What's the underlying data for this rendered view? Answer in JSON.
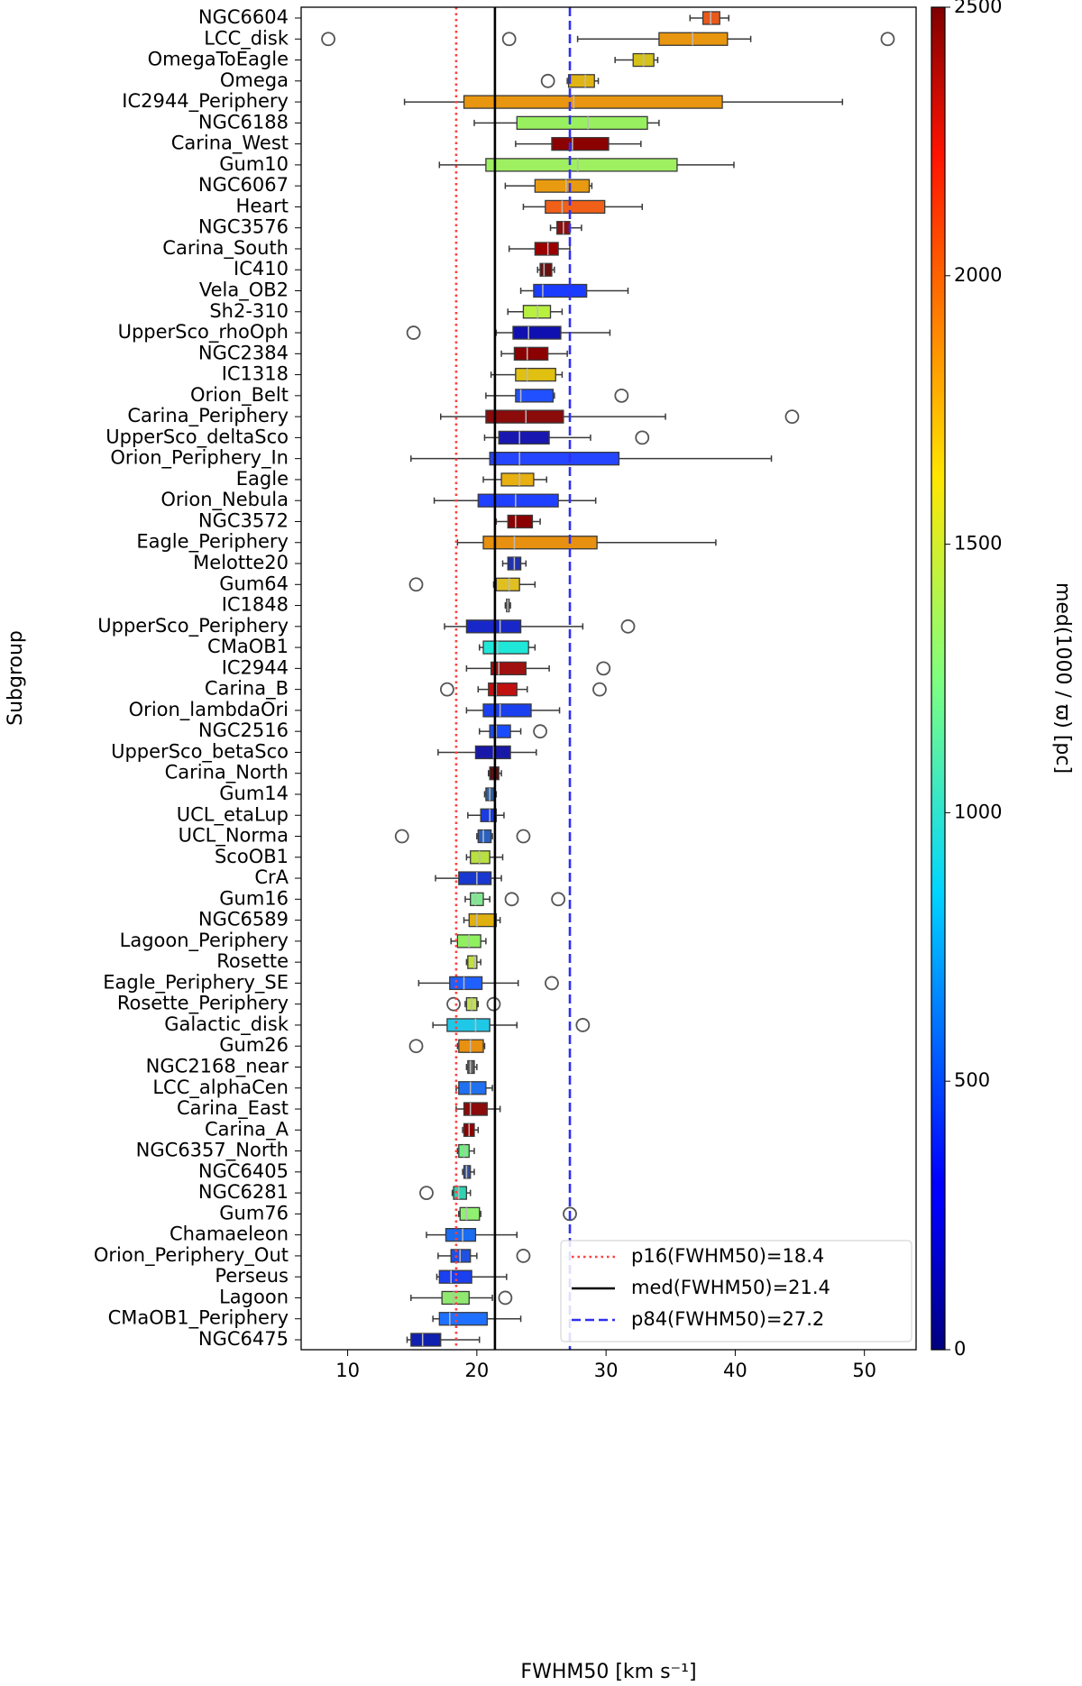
{
  "chart_data": {
    "type": "boxplot",
    "orientation": "horizontal",
    "xlabel": "FWHM50 [km s⁻¹]",
    "ylabel": "Subgroup",
    "xlim": [
      6.4,
      54.0
    ],
    "xticks": [
      10,
      20,
      30,
      40,
      50
    ],
    "boxes": [
      {
        "name": "NGC6604",
        "color": "#e85a1c",
        "whislo": 36.5,
        "q1": 37.5,
        "med": 38.1,
        "q3": 38.8,
        "whishi": 39.5
      },
      {
        "name": "LCC_disk",
        "color": "#e8950f",
        "whislo": 27.8,
        "q1": 34.1,
        "med": 36.7,
        "q3": 39.4,
        "whishi": 41.2,
        "fliers": [
          8.5,
          22.5,
          51.8
        ]
      },
      {
        "name": "OmegaToEagle",
        "color": "#d4c21a",
        "whislo": 30.7,
        "q1": 32.1,
        "med": 32.9,
        "q3": 33.7,
        "whishi": 34.0
      },
      {
        "name": "Omega",
        "color": "#e0b414",
        "whislo": 27.0,
        "q1": 27.1,
        "med": 28.4,
        "q3": 29.1,
        "whishi": 29.4,
        "fliers": [
          25.5
        ]
      },
      {
        "name": "IC2944_Periphery",
        "color": "#e8950f",
        "whislo": 14.4,
        "q1": 19.0,
        "med": 27.5,
        "q3": 39.0,
        "whishi": 48.3
      },
      {
        "name": "NGC6188",
        "color": "#98f060",
        "whislo": 19.8,
        "q1": 23.1,
        "med": 28.6,
        "q3": 33.2,
        "whishi": 34.1
      },
      {
        "name": "Carina_West",
        "color": "#8b0000",
        "whislo": 23.0,
        "q1": 25.8,
        "med": 27.4,
        "q3": 30.2,
        "whishi": 32.7
      },
      {
        "name": "Gum10",
        "color": "#9ef060",
        "whislo": 17.1,
        "q1": 20.7,
        "med": 27.8,
        "q3": 35.5,
        "whishi": 39.9
      },
      {
        "name": "NGC6067",
        "color": "#e89a10",
        "whislo": 22.2,
        "q1": 24.5,
        "med": 26.9,
        "q3": 28.7,
        "whishi": 28.9
      },
      {
        "name": "Heart",
        "color": "#f06018",
        "whislo": 23.6,
        "q1": 25.3,
        "med": 26.6,
        "q3": 29.9,
        "whishi": 32.8
      },
      {
        "name": "NGC3576",
        "color": "#8b1010",
        "whislo": 25.7,
        "q1": 26.2,
        "med": 26.7,
        "q3": 27.2,
        "whishi": 28.1
      },
      {
        "name": "Carina_South",
        "color": "#9a0000",
        "whislo": 22.5,
        "q1": 24.5,
        "med": 25.5,
        "q3": 26.3,
        "whishi": 27.2
      },
      {
        "name": "IC410",
        "color": "#6b1010",
        "whislo": 24.7,
        "q1": 24.9,
        "med": 25.2,
        "q3": 25.8,
        "whishi": 26.0
      },
      {
        "name": "Vela_OB2",
        "color": "#1a3cff",
        "whislo": 23.4,
        "q1": 24.4,
        "med": 25.1,
        "q3": 28.5,
        "whishi": 31.7
      },
      {
        "name": "Sh2-310",
        "color": "#b8f040",
        "whislo": 22.4,
        "q1": 23.6,
        "med": 24.7,
        "q3": 25.7,
        "whishi": 26.6
      },
      {
        "name": "UpperSco_rhoOph",
        "color": "#1010b0",
        "whislo": 21.5,
        "q1": 22.8,
        "med": 24.0,
        "q3": 26.5,
        "whishi": 30.3,
        "fliers": [
          15.1
        ]
      },
      {
        "name": "NGC2384",
        "color": "#8b0000",
        "whislo": 21.9,
        "q1": 22.9,
        "med": 23.9,
        "q3": 25.5,
        "whishi": 27.0
      },
      {
        "name": "IC1318",
        "color": "#e0c010",
        "whislo": 21.1,
        "q1": 23.0,
        "med": 23.9,
        "q3": 26.1,
        "whishi": 26.6
      },
      {
        "name": "Orion_Belt",
        "color": "#2050ff",
        "whislo": 20.7,
        "q1": 23.0,
        "med": 23.4,
        "q3": 25.9,
        "whishi": 26.0,
        "fliers": [
          31.2
        ]
      },
      {
        "name": "Carina_Periphery",
        "color": "#8b0a0a",
        "whislo": 17.2,
        "q1": 20.7,
        "med": 23.8,
        "q3": 26.7,
        "whishi": 34.6,
        "fliers": [
          44.4
        ]
      },
      {
        "name": "UpperSco_deltaSco",
        "color": "#1818b0",
        "whislo": 20.6,
        "q1": 21.7,
        "med": 23.3,
        "q3": 25.6,
        "whishi": 28.8,
        "fliers": [
          32.8
        ]
      },
      {
        "name": "Orion_Periphery_In",
        "color": "#2545ff",
        "whislo": 14.9,
        "q1": 21.0,
        "med": 23.3,
        "q3": 31.0,
        "whishi": 42.8
      },
      {
        "name": "Eagle",
        "color": "#e8b010",
        "whislo": 20.5,
        "q1": 21.9,
        "med": 23.3,
        "q3": 24.4,
        "whishi": 25.4
      },
      {
        "name": "Orion_Nebula",
        "color": "#2040ff",
        "whislo": 16.7,
        "q1": 20.1,
        "med": 23.0,
        "q3": 26.3,
        "whishi": 29.2
      },
      {
        "name": "NGC3572",
        "color": "#8b0000",
        "whislo": 21.5,
        "q1": 22.4,
        "med": 23.0,
        "q3": 24.3,
        "whishi": 24.9
      },
      {
        "name": "Eagle_Periphery",
        "color": "#e8900f",
        "whislo": 18.5,
        "q1": 20.5,
        "med": 22.9,
        "q3": 29.3,
        "whishi": 38.5
      },
      {
        "name": "Melotte20",
        "color": "#2030b0",
        "whislo": 22.0,
        "q1": 22.4,
        "med": 22.9,
        "q3": 23.4,
        "whishi": 23.8
      },
      {
        "name": "Gum64",
        "color": "#e0c020",
        "whislo": 21.3,
        "q1": 21.5,
        "med": 22.5,
        "q3": 23.3,
        "whishi": 24.5,
        "fliers": [
          15.3
        ]
      },
      {
        "name": "IC1848",
        "color": "#3a3a60",
        "whislo": 22.2,
        "q1": 22.3,
        "med": 22.4,
        "q3": 22.5,
        "whishi": 22.6
      },
      {
        "name": "UpperSco_Periphery",
        "color": "#1828c8",
        "whislo": 17.5,
        "q1": 19.2,
        "med": 21.8,
        "q3": 23.4,
        "whishi": 28.2,
        "fliers": [
          31.7
        ]
      },
      {
        "name": "CMaOB1",
        "color": "#20e8d8",
        "whislo": 20.2,
        "q1": 20.5,
        "med": 21.6,
        "q3": 24.0,
        "whishi": 24.5
      },
      {
        "name": "IC2944",
        "color": "#a01010",
        "whislo": 19.2,
        "q1": 21.1,
        "med": 21.7,
        "q3": 23.8,
        "whishi": 25.6,
        "fliers": [
          29.8
        ]
      },
      {
        "name": "Carina_B",
        "color": "#c01010",
        "whislo": 20.1,
        "q1": 20.9,
        "med": 21.5,
        "q3": 23.1,
        "whishi": 23.9,
        "fliers": [
          17.7,
          29.5
        ]
      },
      {
        "name": "Orion_lambdaOri",
        "color": "#1a40f0",
        "whislo": 19.2,
        "q1": 20.5,
        "med": 21.8,
        "q3": 24.2,
        "whishi": 26.4
      },
      {
        "name": "NGC2516",
        "color": "#1a4cff",
        "whislo": 20.2,
        "q1": 21.0,
        "med": 21.5,
        "q3": 22.6,
        "whishi": 23.4,
        "fliers": [
          24.9
        ]
      },
      {
        "name": "UpperSco_betaSco",
        "color": "#1818a8",
        "whislo": 17.0,
        "q1": 19.9,
        "med": 21.3,
        "q3": 22.6,
        "whishi": 24.6
      },
      {
        "name": "Carina_North",
        "color": "#5a1010",
        "whislo": 20.9,
        "q1": 21.0,
        "med": 21.4,
        "q3": 21.7,
        "whishi": 21.9
      },
      {
        "name": "Gum14",
        "color": "#3060a0",
        "whislo": 20.6,
        "q1": 20.7,
        "med": 21.0,
        "q3": 21.4,
        "whishi": 21.5
      },
      {
        "name": "UCL_etaLup",
        "color": "#1a3ce0",
        "whislo": 19.3,
        "q1": 20.3,
        "med": 21.0,
        "q3": 21.5,
        "whishi": 22.1
      },
      {
        "name": "UCL_Norma",
        "color": "#2a60c0",
        "whislo": 20.0,
        "q1": 20.1,
        "med": 20.5,
        "q3": 21.1,
        "whishi": 21.2,
        "fliers": [
          14.2,
          23.6
        ]
      },
      {
        "name": "ScoOB1",
        "color": "#b8e040",
        "whislo": 19.2,
        "q1": 19.5,
        "med": 20.2,
        "q3": 21.0,
        "whishi": 22.0
      },
      {
        "name": "CrA",
        "color": "#1838d0",
        "whislo": 16.8,
        "q1": 18.6,
        "med": 20.0,
        "q3": 21.1,
        "whishi": 21.9
      },
      {
        "name": "Gum16",
        "color": "#80e890",
        "whislo": 19.1,
        "q1": 19.5,
        "med": 19.9,
        "q3": 20.5,
        "whishi": 21.0,
        "fliers": [
          22.7,
          26.3
        ]
      },
      {
        "name": "NGC6589",
        "color": "#e0b010",
        "whislo": 19.0,
        "q1": 19.4,
        "med": 20.0,
        "q3": 21.5,
        "whishi": 21.8
      },
      {
        "name": "Lagoon_Periphery",
        "color": "#90f060",
        "whislo": 18.0,
        "q1": 18.5,
        "med": 19.4,
        "q3": 20.3,
        "whishi": 20.7
      },
      {
        "name": "Rosette",
        "color": "#c0e040",
        "whislo": 19.2,
        "q1": 19.3,
        "med": 19.8,
        "q3": 20.0,
        "whishi": 20.3
      },
      {
        "name": "Eagle_Periphery_SE",
        "color": "#2060ff",
        "whislo": 15.5,
        "q1": 17.9,
        "med": 19.0,
        "q3": 20.4,
        "whishi": 23.2,
        "fliers": [
          25.8
        ]
      },
      {
        "name": "Rosette_Periphery",
        "color": "#c0e050",
        "whislo": 19.1,
        "q1": 19.2,
        "med": 19.6,
        "q3": 20.0,
        "whishi": 20.1,
        "fliers": [
          18.2,
          21.3
        ]
      },
      {
        "name": "Galactic_disk",
        "color": "#20c8e8",
        "whislo": 16.6,
        "q1": 17.7,
        "med": 19.9,
        "q3": 21.0,
        "whishi": 23.1,
        "fliers": [
          28.2
        ]
      },
      {
        "name": "Gum26",
        "color": "#e8900f",
        "whislo": 18.5,
        "q1": 18.6,
        "med": 19.5,
        "q3": 20.5,
        "whishi": 20.6,
        "fliers": [
          15.3
        ]
      },
      {
        "name": "NGC2168_near",
        "color": "#606060",
        "whislo": 19.2,
        "q1": 19.3,
        "med": 19.5,
        "q3": 19.8,
        "whishi": 20.0
      },
      {
        "name": "LCC_alphaCen",
        "color": "#2070f0",
        "whislo": 18.4,
        "q1": 18.6,
        "med": 19.5,
        "q3": 20.7,
        "whishi": 21.2
      },
      {
        "name": "Carina_East",
        "color": "#8b0a0a",
        "whislo": 18.4,
        "q1": 19.0,
        "med": 19.5,
        "q3": 20.8,
        "whishi": 21.8
      },
      {
        "name": "Carina_A",
        "color": "#900000",
        "whislo": 18.9,
        "q1": 19.0,
        "med": 19.4,
        "q3": 19.8,
        "whishi": 20.1
      },
      {
        "name": "NGC6357_North",
        "color": "#70f080",
        "whislo": 18.5,
        "q1": 18.6,
        "med": 19.0,
        "q3": 19.4,
        "whishi": 19.8
      },
      {
        "name": "NGC6405",
        "color": "#3050a0",
        "whislo": 18.9,
        "q1": 19.0,
        "med": 19.2,
        "q3": 19.5,
        "whishi": 19.8
      },
      {
        "name": "NGC6281",
        "color": "#30d0b0",
        "whislo": 18.1,
        "q1": 18.2,
        "med": 18.6,
        "q3": 19.2,
        "whishi": 19.5,
        "fliers": [
          16.1
        ]
      },
      {
        "name": "Gum76",
        "color": "#90f070",
        "whislo": 18.6,
        "q1": 18.7,
        "med": 19.2,
        "q3": 20.2,
        "whishi": 20.3,
        "fliers": [
          27.2
        ]
      },
      {
        "name": "Chamaeleon",
        "color": "#1a6cf0",
        "whislo": 16.1,
        "q1": 17.6,
        "med": 18.9,
        "q3": 19.9,
        "whishi": 23.1
      },
      {
        "name": "Orion_Periphery_Out",
        "color": "#2050e0",
        "whislo": 17.0,
        "q1": 18.0,
        "med": 18.7,
        "q3": 19.5,
        "whishi": 20.0,
        "fliers": [
          23.6
        ]
      },
      {
        "name": "Perseus",
        "color": "#1a40f0",
        "whislo": 16.9,
        "q1": 17.1,
        "med": 18.0,
        "q3": 19.6,
        "whishi": 22.3
      },
      {
        "name": "Lagoon",
        "color": "#90e870",
        "whislo": 14.9,
        "q1": 17.3,
        "med": 18.2,
        "q3": 19.4,
        "whishi": 21.2,
        "fliers": [
          22.2
        ]
      },
      {
        "name": "CMaOB1_Periphery",
        "color": "#2070ff",
        "whislo": 16.6,
        "q1": 17.1,
        "med": 17.9,
        "q3": 20.8,
        "whishi": 23.4
      },
      {
        "name": "NGC6475",
        "color": "#1020b0",
        "whislo": 14.6,
        "q1": 14.9,
        "med": 15.8,
        "q3": 17.2,
        "whishi": 20.2
      }
    ],
    "reference_lines": [
      {
        "label": "p16(FWHM50)=18.4",
        "value": 18.4,
        "color": "#ff4040",
        "style": "dotted"
      },
      {
        "label": "med(FWHM50)=21.4",
        "value": 21.4,
        "color": "#000000",
        "style": "solid"
      },
      {
        "label": "p84(FWHM50)=27.2",
        "value": 27.2,
        "color": "#3030f0",
        "style": "dashed"
      }
    ],
    "legend": "lower right",
    "colorbar": {
      "label": "med(1000 / ϖ) [pc]",
      "lim": [
        0,
        2500
      ],
      "ticks": [
        0,
        500,
        1000,
        1500,
        2000,
        2500
      ],
      "colormap": "jet"
    }
  }
}
